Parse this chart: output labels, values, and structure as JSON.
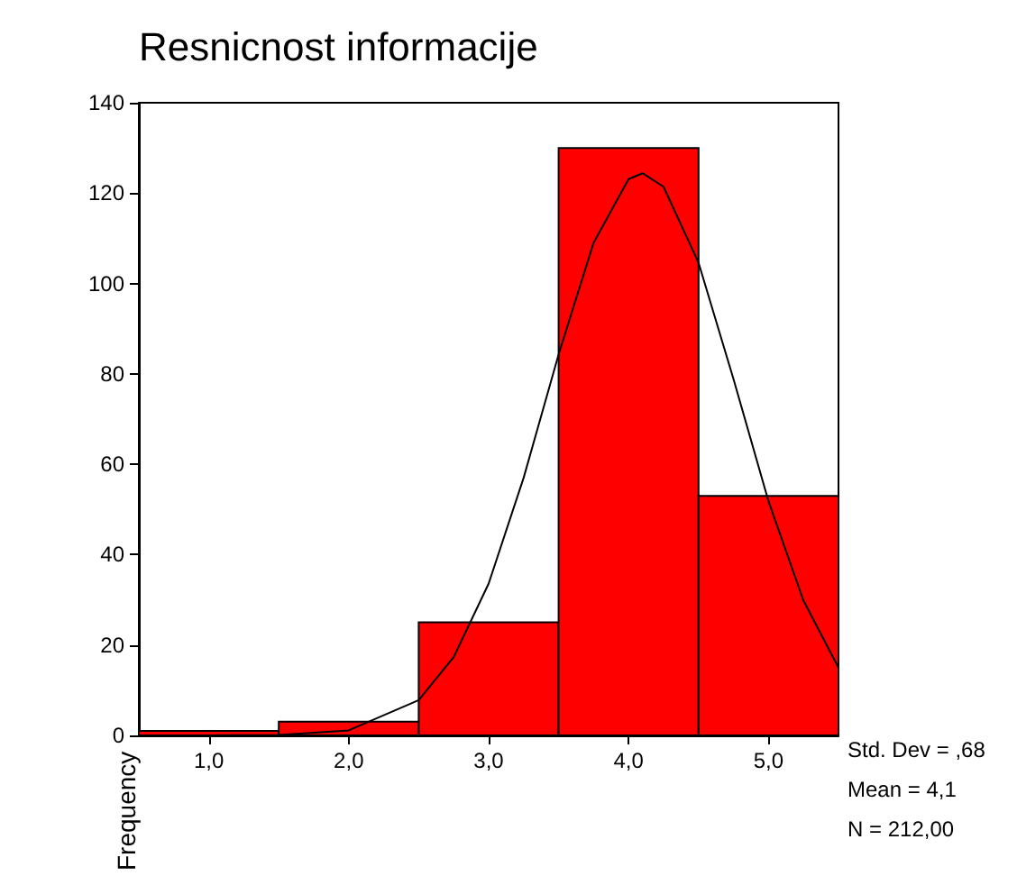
{
  "chart_data": {
    "type": "histogram",
    "title": "Resnicnost informacije",
    "ylabel": "Frequency",
    "bins": [
      0.5,
      1.5,
      2.5,
      3.5,
      4.5,
      5.5
    ],
    "values": [
      1,
      3,
      25,
      130,
      53
    ],
    "color": "#ff0000",
    "xlim": [
      0.5,
      5.5
    ],
    "xticks": [
      {
        "value": 1,
        "label": "1,0"
      },
      {
        "value": 2,
        "label": "2,0"
      },
      {
        "value": 3,
        "label": "3,0"
      },
      {
        "value": 4,
        "label": "4,0"
      },
      {
        "value": 5,
        "label": "5,0"
      }
    ],
    "ylim": [
      0,
      140
    ],
    "yticks": [
      0,
      20,
      40,
      60,
      80,
      100,
      120,
      140
    ],
    "grid": false,
    "marker": "none",
    "line_style": "solid",
    "series": [
      {
        "type": "line",
        "color": "#000000",
        "x": [
          1.0,
          1.5,
          2.0,
          2.5,
          2.75,
          3.0,
          3.25,
          3.5,
          3.75,
          4.0,
          4.1,
          4.25,
          4.5,
          4.75,
          5.0,
          5.25,
          5.5
        ],
        "values": [
          0,
          0.1,
          1.1,
          7.8,
          17.3,
          33.6,
          57,
          84.3,
          109,
          123.1,
          124.4,
          121.4,
          104.6,
          78.8,
          51.8,
          29.8,
          15
        ]
      }
    ],
    "annotations": [
      "Std. Dev = ,68",
      "Mean = 4,1",
      "N = 212,00"
    ]
  }
}
